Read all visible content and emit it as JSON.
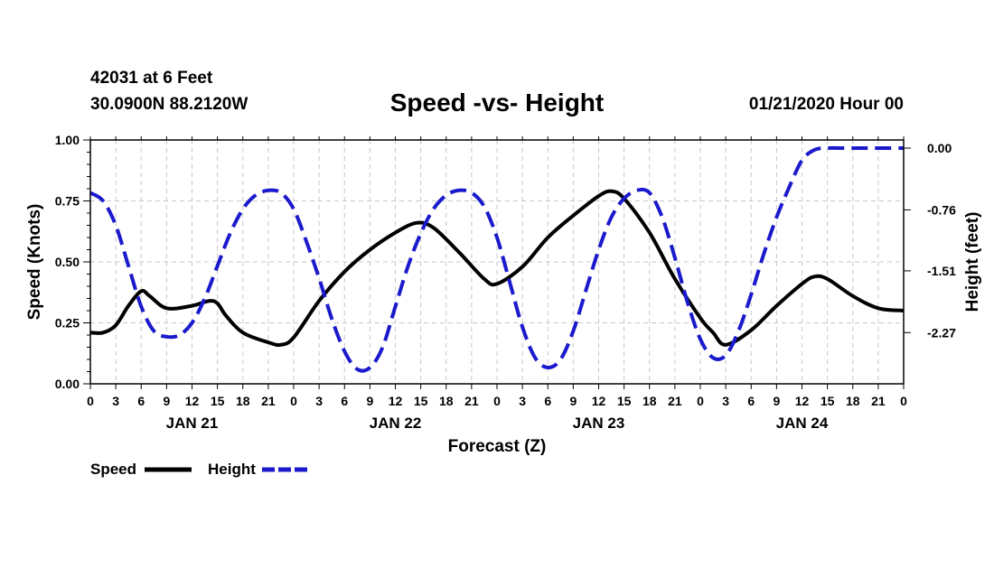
{
  "header": {
    "station": "42031 at 6 Feet",
    "location": "30.0900N 88.2120W",
    "title": "Speed -vs- Height",
    "datetime": "01/21/2020 Hour 00"
  },
  "chart_data": {
    "type": "line",
    "title": "Speed -vs- Height",
    "xlabel": "Forecast (Z)",
    "ylabel": "Speed (Knots)",
    "y2label": "Height (feet)",
    "x_range_hours": [
      0,
      96
    ],
    "ylim": [
      0,
      1
    ],
    "y_ticks": [
      "0.00",
      "0.25",
      "0.50",
      "0.75",
      "1.00"
    ],
    "y2lim": [
      -2.9,
      0.1
    ],
    "y2_ticks": [
      "0.00",
      "-0.76",
      "-1.51",
      "-2.27"
    ],
    "y2_tick_values": [
      0.0,
      -0.76,
      -1.51,
      -2.27
    ],
    "x_tick_labels": [
      "0",
      "3",
      "6",
      "9",
      "12",
      "15",
      "18",
      "21",
      "0",
      "3",
      "6",
      "9",
      "12",
      "15",
      "18",
      "21",
      "0",
      "3",
      "6",
      "9",
      "12",
      "15",
      "18",
      "21",
      "0",
      "3",
      "6",
      "9",
      "12",
      "15",
      "18",
      "21",
      "0"
    ],
    "day_labels": [
      "JAN 21",
      "JAN 22",
      "JAN 23",
      "JAN 24"
    ],
    "grid": true,
    "legend": [
      {
        "name": "Speed",
        "color": "#000000",
        "style": "solid"
      },
      {
        "name": "Height",
        "color": "#1a1acc",
        "style": "dashed"
      }
    ],
    "series": [
      {
        "name": "Speed",
        "axis": "left",
        "color": "#000000",
        "x": [
          0,
          1.5,
          3,
          4.5,
          6,
          7,
          9,
          12,
          14,
          15,
          16,
          18,
          21,
          22.5,
          24,
          27,
          30,
          33,
          36,
          38.5,
          40.5,
          43.5,
          46.5,
          48,
          51,
          54,
          57,
          60,
          61.5,
          63,
          66,
          69,
          72,
          73.5,
          75,
          78,
          81,
          84,
          85.5,
          87,
          90,
          93,
          96
        ],
        "values": [
          0.21,
          0.21,
          0.24,
          0.32,
          0.38,
          0.36,
          0.31,
          0.32,
          0.34,
          0.33,
          0.28,
          0.21,
          0.17,
          0.16,
          0.19,
          0.34,
          0.46,
          0.55,
          0.62,
          0.66,
          0.64,
          0.54,
          0.43,
          0.41,
          0.48,
          0.6,
          0.69,
          0.77,
          0.79,
          0.76,
          0.62,
          0.43,
          0.27,
          0.21,
          0.16,
          0.22,
          0.32,
          0.41,
          0.44,
          0.43,
          0.36,
          0.31,
          0.3
        ]
      },
      {
        "name": "Height",
        "axis": "right",
        "color": "#1a1acc",
        "x": [
          0,
          1.5,
          3,
          4.5,
          6,
          7.5,
          9,
          10.5,
          12,
          13.5,
          15,
          16.5,
          18,
          19.5,
          21,
          22.5,
          24,
          25.5,
          27,
          28.5,
          30,
          31.5,
          33,
          34.5,
          36,
          37.5,
          39,
          40.5,
          42,
          43.5,
          45,
          46.5,
          48,
          49.5,
          51,
          52.5,
          54,
          55.5,
          57,
          58.5,
          60,
          61.5,
          63,
          64.5,
          66,
          67.5,
          69,
          70.5,
          72,
          73.5,
          75,
          76.5,
          78,
          79.5,
          81,
          82.5,
          84,
          85.5,
          87,
          88.5,
          90,
          91.5,
          93,
          94.5,
          96
        ],
        "values": [
          -0.55,
          -0.65,
          -0.95,
          -1.45,
          -1.95,
          -2.25,
          -2.32,
          -2.3,
          -2.15,
          -1.85,
          -1.45,
          -1.05,
          -0.75,
          -0.58,
          -0.52,
          -0.55,
          -0.75,
          -1.15,
          -1.6,
          -2.1,
          -2.5,
          -2.72,
          -2.7,
          -2.45,
          -1.95,
          -1.45,
          -1.05,
          -0.75,
          -0.58,
          -0.52,
          -0.55,
          -0.72,
          -1.1,
          -1.65,
          -2.2,
          -2.58,
          -2.7,
          -2.6,
          -2.25,
          -1.75,
          -1.25,
          -0.85,
          -0.62,
          -0.52,
          -0.55,
          -0.85,
          -1.35,
          -1.9,
          -2.35,
          -2.58,
          -2.55,
          -2.25,
          -1.8,
          -1.3,
          -0.85,
          -0.48,
          -0.15,
          -0.02,
          0.0,
          0.0,
          0.0,
          0.0,
          0.0,
          0.0,
          0.0
        ]
      }
    ]
  }
}
